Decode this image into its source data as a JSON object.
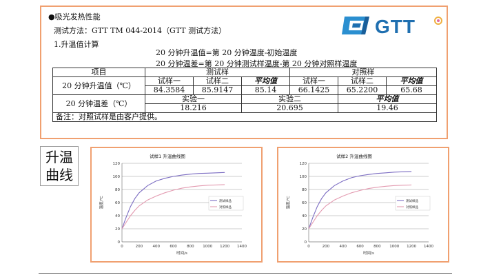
{
  "doc": {
    "heading": "●吸光发热性能",
    "method": "测试方法：GTT TM 044-2014（GTT 测试方法）",
    "section": "1.升温值计算",
    "formula1": "20 分钟升温值=第 20 分钟温度-初始温度",
    "formula2": "20 分钟温差=第 20 分钟测试样温度-第 20 分钟对照样温度",
    "logo_text": "GTT",
    "table": {
      "h_item": "项目",
      "h_test": "测试样",
      "h_ctrl": "对照样",
      "row1_label": "20 分钟升温值（℃）",
      "sub1": "试样一",
      "sub2": "试样二",
      "sub_avg": "平均值",
      "t1": "84.3584",
      "t2": "85.9147",
      "tavg": "85.14",
      "c1": "66.1425",
      "c2": "65.2200",
      "cavg": "65.68",
      "row2_label": "20 分钟温差（℃）",
      "exp1": "实验一",
      "exp2": "实验二",
      "exp_avg": "平均值",
      "d1": "18.216",
      "d2": "20.695",
      "davg": "19.46",
      "note": "备注：对照试样是由客户提供。"
    },
    "side_label_1": "升温",
    "side_label_2": "曲线"
  },
  "colors": {
    "border": "#f0a070",
    "test_series": "#7b6cc2",
    "ctrl_series": "#e39ab0"
  },
  "chart_data": [
    {
      "type": "line",
      "title": "试样1 升温曲线图",
      "xlabel": "时间/s",
      "ylabel": "温度/℃",
      "xlim": [
        0,
        1400
      ],
      "ylim": [
        0,
        120
      ],
      "xticks": [
        "0",
        "200",
        "400",
        "600",
        "800",
        "1000",
        "1200",
        "1400"
      ],
      "yticks": [
        "0",
        "20",
        "40",
        "60",
        "80",
        "100",
        "120"
      ],
      "legend": "right",
      "grid": "horizontal",
      "series": [
        {
          "name": "测试样品",
          "color": "#7b6cc2",
          "x": [
            0,
            50,
            100,
            150,
            200,
            300,
            400,
            500,
            600,
            700,
            800,
            900,
            1000,
            1100,
            1200
          ],
          "y": [
            20,
            38,
            54,
            66,
            75,
            86,
            93,
            97,
            100,
            102,
            103.5,
            104.5,
            105,
            105.5,
            106
          ]
        },
        {
          "name": "对照样品",
          "color": "#e39ab0",
          "x": [
            0,
            50,
            100,
            150,
            200,
            300,
            400,
            500,
            600,
            700,
            800,
            900,
            1000,
            1100,
            1200
          ],
          "y": [
            20,
            30,
            40,
            48,
            55,
            64,
            70,
            75,
            79,
            82,
            84,
            85.5,
            86.5,
            87,
            87.5
          ]
        }
      ]
    },
    {
      "type": "line",
      "title": "试样2 升温曲线图",
      "xlabel": "时间/s",
      "ylabel": "温度/℃",
      "xlim": [
        0,
        1400
      ],
      "ylim": [
        0,
        120
      ],
      "xticks": [
        "0",
        "200",
        "400",
        "600",
        "800",
        "1000",
        "1200",
        "1400"
      ],
      "yticks": [
        "0",
        "20",
        "40",
        "60",
        "80",
        "100",
        "120"
      ],
      "legend": "right",
      "grid": "horizontal",
      "series": [
        {
          "name": "测试样品",
          "color": "#7b6cc2",
          "x": [
            0,
            50,
            100,
            150,
            200,
            300,
            400,
            500,
            600,
            700,
            800,
            900,
            1000,
            1100,
            1200
          ],
          "y": [
            20,
            38,
            54,
            66,
            75,
            86,
            93,
            98,
            101,
            103,
            104.5,
            105.5,
            106.5,
            107,
            107.5
          ]
        },
        {
          "name": "对照样品",
          "color": "#e39ab0",
          "x": [
            0,
            50,
            100,
            150,
            200,
            300,
            400,
            500,
            600,
            700,
            800,
            900,
            1000,
            1100,
            1200
          ],
          "y": [
            20,
            30,
            40,
            48,
            55,
            64,
            70,
            75,
            78.5,
            81.5,
            83.5,
            85,
            86,
            86.5,
            87
          ]
        }
      ]
    }
  ]
}
